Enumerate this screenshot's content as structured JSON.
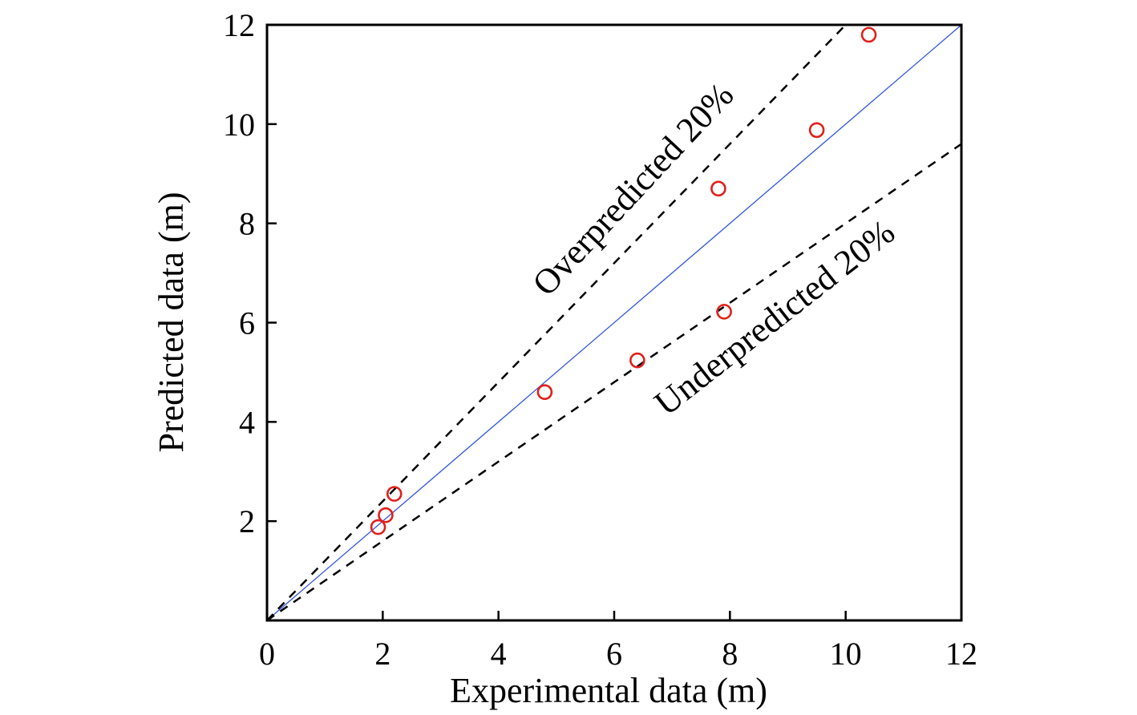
{
  "chart_data": {
    "type": "scatter",
    "xlabel": "Experimental data (m)",
    "ylabel": "Predicted data (m)",
    "xlim": [
      0,
      12
    ],
    "ylim": [
      0,
      12
    ],
    "x_ticks": [
      0,
      2,
      4,
      6,
      8,
      10,
      12
    ],
    "y_ticks": [
      2,
      4,
      6,
      8,
      10,
      12
    ],
    "x_tick_labels": [
      "0",
      "2",
      "4",
      "6",
      "8",
      "10",
      "12"
    ],
    "y_tick_labels": [
      "2",
      "4",
      "6",
      "8",
      "10",
      "12"
    ],
    "grid": false,
    "series": [
      {
        "marker": "open-circle",
        "color": "#e0201a",
        "points": [
          {
            "x": 1.92,
            "y": 1.88
          },
          {
            "x": 2.05,
            "y": 2.12
          },
          {
            "x": 2.2,
            "y": 2.55
          },
          {
            "x": 4.8,
            "y": 4.6
          },
          {
            "x": 6.4,
            "y": 5.24
          },
          {
            "x": 7.8,
            "y": 8.7
          },
          {
            "x": 7.9,
            "y": 6.22
          },
          {
            "x": 9.5,
            "y": 9.88
          },
          {
            "x": 10.4,
            "y": 11.8
          }
        ]
      }
    ],
    "reference_lines": [
      {
        "style": "solid",
        "color": "#3355dd",
        "slope": 1.0
      },
      {
        "style": "dashed",
        "color": "#000000",
        "slope": 1.2
      },
      {
        "style": "dashed",
        "color": "#000000",
        "slope": 0.8
      }
    ],
    "annotations": [
      {
        "text": "Overpredicted 20%",
        "x": 4.85,
        "y": 6.5,
        "angle": -47
      },
      {
        "text": "Underpredicted 20%",
        "x": 6.9,
        "y": 4.1,
        "angle": -38
      }
    ]
  }
}
